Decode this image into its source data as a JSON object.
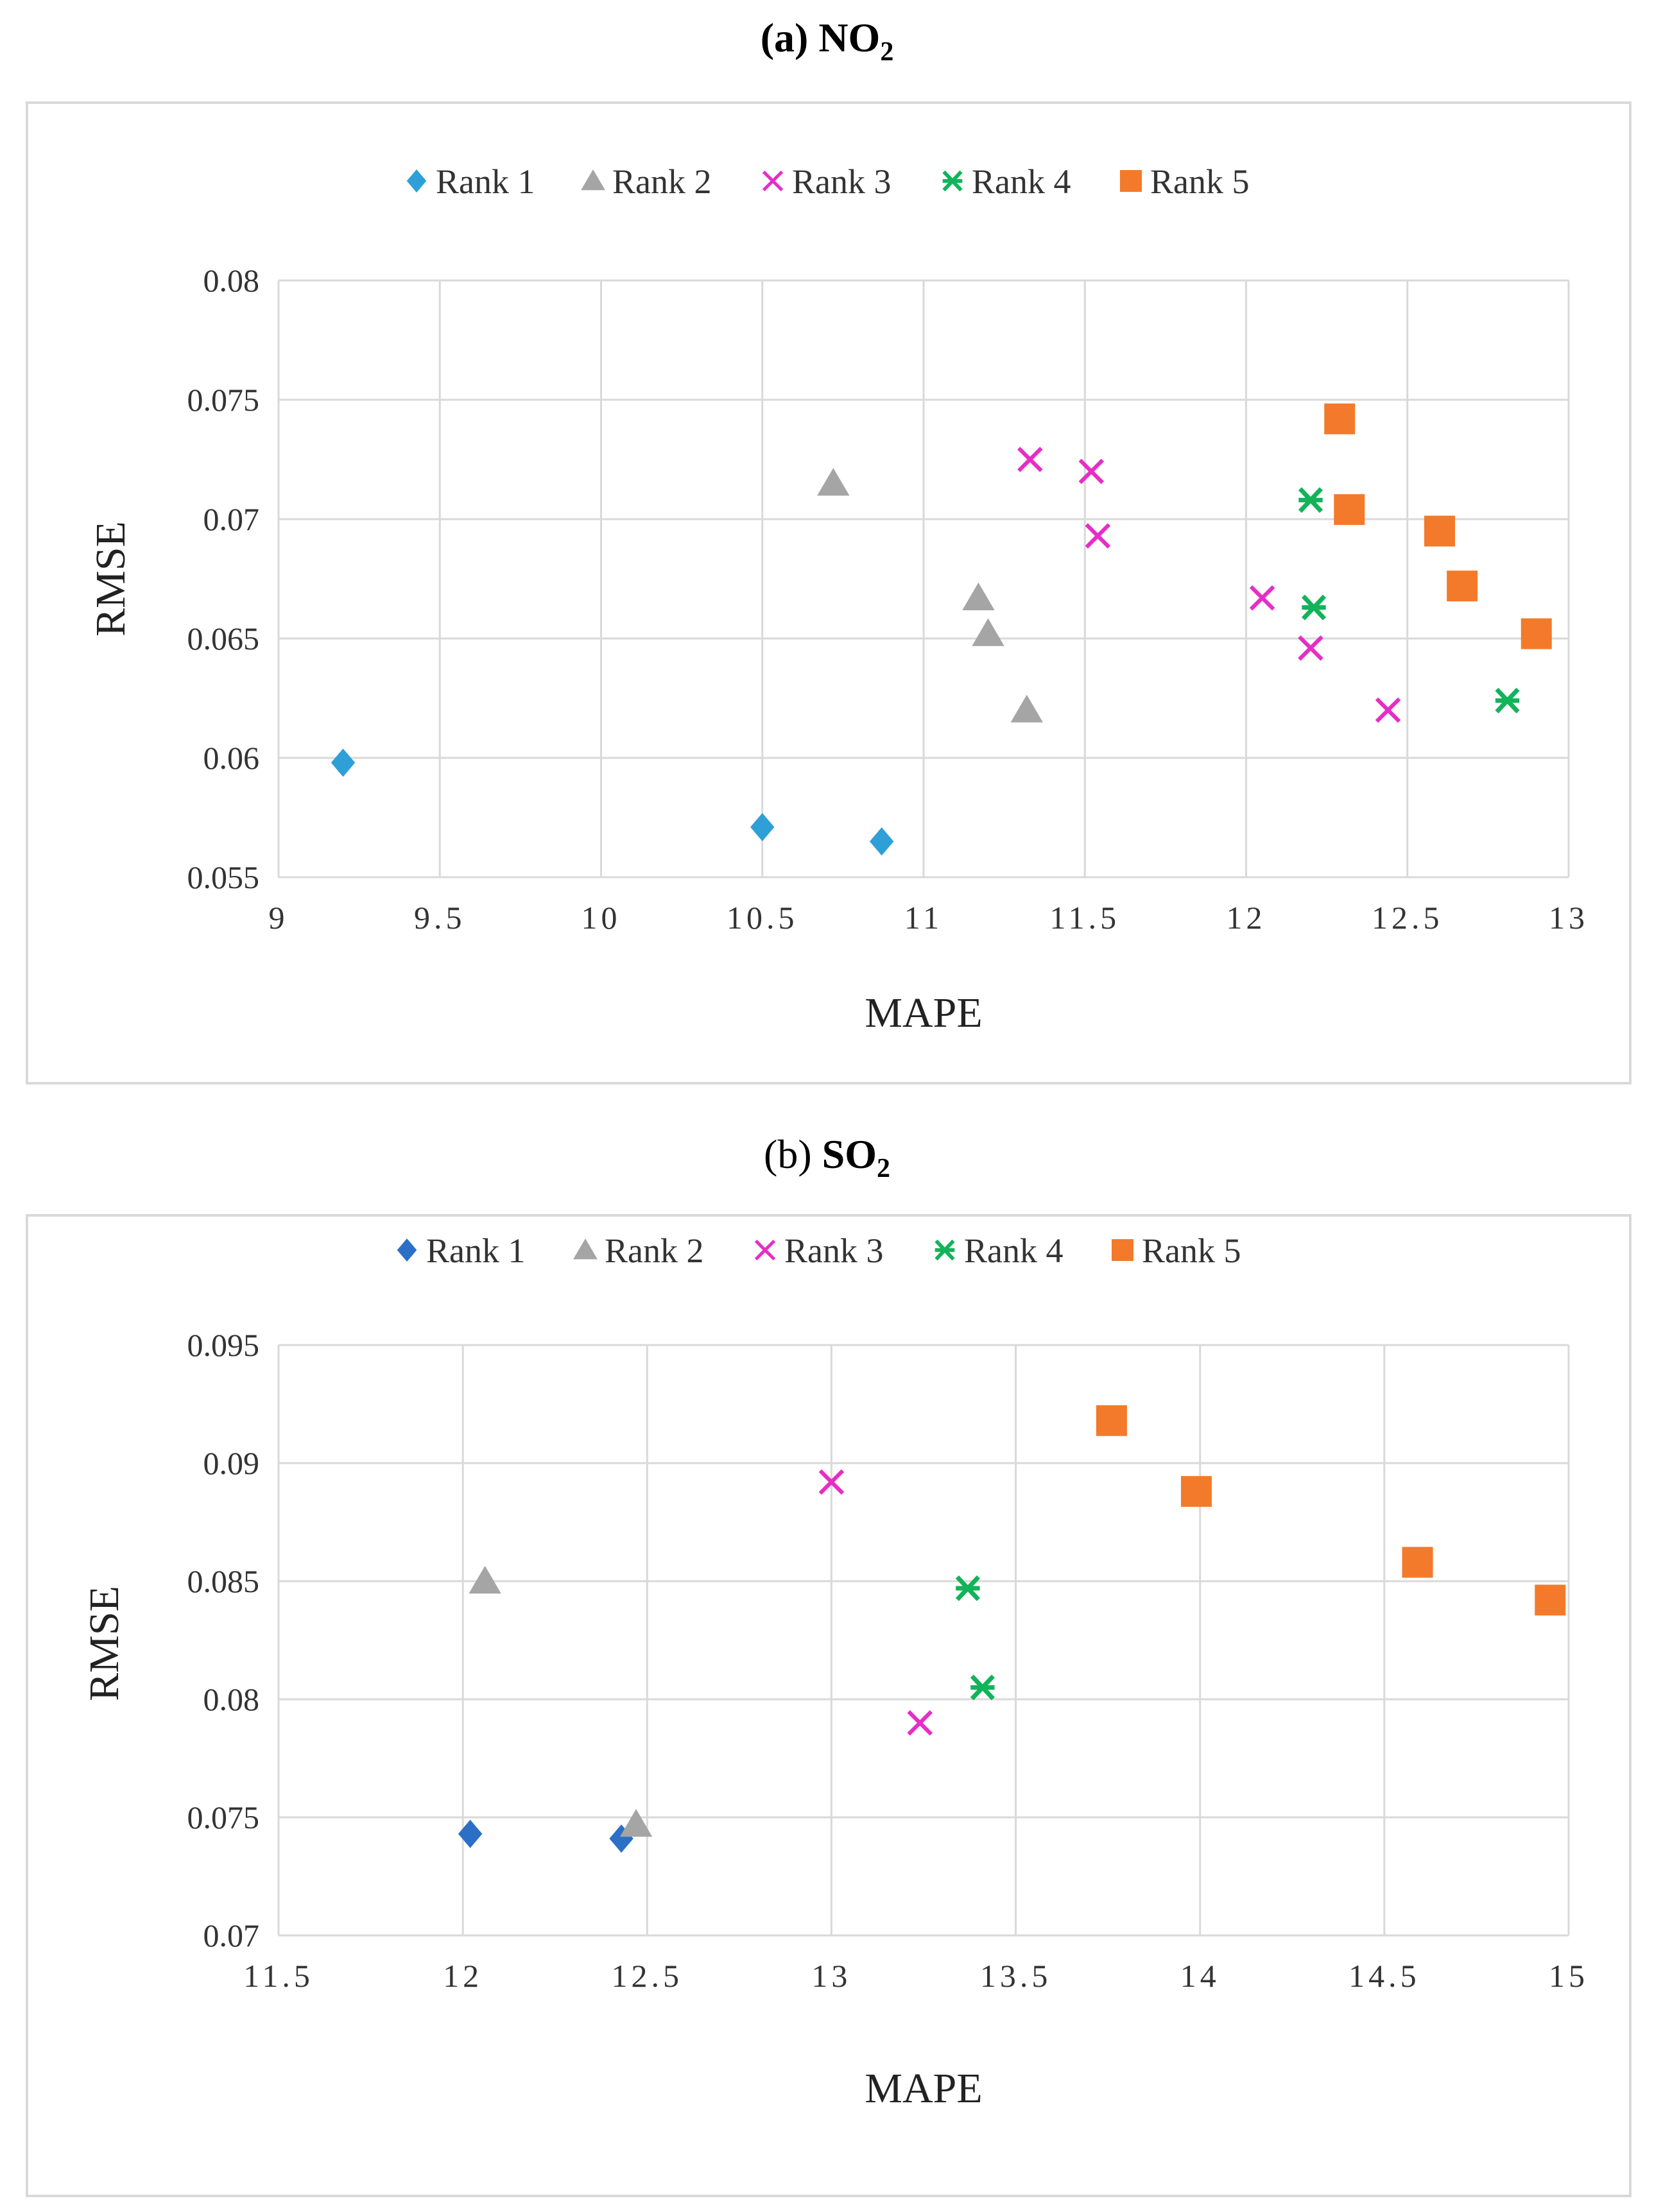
{
  "figure": {
    "panel_a": {
      "label": "(a)",
      "chem": "NO",
      "sub": "2"
    },
    "panel_b": {
      "label": "(b)",
      "chem": "SO",
      "sub": "2"
    }
  },
  "colors": {
    "rank1_a": "#2f9fd8",
    "rank1_b": "#2b6fc7",
    "rank2": "#a5a5a5",
    "rank3": "#e62ec6",
    "rank4": "#13b35a",
    "rank5": "#f37a2a",
    "grid": "#d9d9d9"
  },
  "chart_data": [
    {
      "type": "scatter",
      "title": "(a) NO2",
      "xlabel": "MAPE",
      "ylabel": "RMSE",
      "xlim": [
        9,
        13
      ],
      "ylim": [
        0.055,
        0.08
      ],
      "xticks": [
        "9",
        "9.5",
        "10",
        "10.5",
        "11",
        "11.5",
        "12",
        "12.5",
        "13"
      ],
      "yticks": [
        "0.055",
        "0.06",
        "0.065",
        "0.07",
        "0.075",
        "0.08"
      ],
      "legend": "top",
      "series": [
        {
          "name": "Rank 1",
          "marker": "diamond",
          "x": [
            9.2,
            10.5,
            10.87
          ],
          "y": [
            0.0598,
            0.0571,
            0.0565
          ]
        },
        {
          "name": "Rank 2",
          "marker": "triangle",
          "x": [
            10.72,
            11.17,
            11.2,
            11.32
          ],
          "y": [
            0.0715,
            0.0667,
            0.0652,
            0.062
          ]
        },
        {
          "name": "Rank 3",
          "marker": "x",
          "x": [
            11.33,
            11.52,
            11.54,
            12.05,
            12.2,
            12.44
          ],
          "y": [
            0.0725,
            0.072,
            0.0693,
            0.0667,
            0.0646,
            0.062
          ]
        },
        {
          "name": "Rank 4",
          "marker": "star",
          "x": [
            12.2,
            12.21,
            12.81
          ],
          "y": [
            0.0708,
            0.0663,
            0.0624
          ]
        },
        {
          "name": "Rank 5",
          "marker": "square",
          "x": [
            12.29,
            12.32,
            12.6,
            12.67,
            12.9
          ],
          "y": [
            0.0742,
            0.0704,
            0.0695,
            0.0672,
            0.0652
          ]
        }
      ]
    },
    {
      "type": "scatter",
      "title": "(b) SO2",
      "xlabel": "MAPE",
      "ylabel": "RMSE",
      "xlim": [
        11.5,
        15
      ],
      "ylim": [
        0.07,
        0.095
      ],
      "xticks": [
        "11.5",
        "12",
        "12.5",
        "13",
        "13.5",
        "14",
        "14.5",
        "15"
      ],
      "yticks": [
        "0.07",
        "0.075",
        "0.08",
        "0.085",
        "0.09",
        "0.095"
      ],
      "legend": "top",
      "series": [
        {
          "name": "Rank 1",
          "marker": "diamond",
          "x": [
            12.02,
            12.43
          ],
          "y": [
            0.0743,
            0.0741
          ]
        },
        {
          "name": "Rank 2",
          "marker": "triangle",
          "x": [
            12.06,
            12.47
          ],
          "y": [
            0.085,
            0.0747
          ]
        },
        {
          "name": "Rank 3",
          "marker": "x",
          "x": [
            13.0,
            13.24
          ],
          "y": [
            0.0892,
            0.079
          ]
        },
        {
          "name": "Rank 4",
          "marker": "star",
          "x": [
            13.37,
            13.41
          ],
          "y": [
            0.0847,
            0.0805
          ]
        },
        {
          "name": "Rank 5",
          "marker": "square",
          "x": [
            13.76,
            13.99,
            14.59,
            14.95
          ],
          "y": [
            0.0918,
            0.0888,
            0.0858,
            0.0842
          ]
        }
      ]
    }
  ]
}
